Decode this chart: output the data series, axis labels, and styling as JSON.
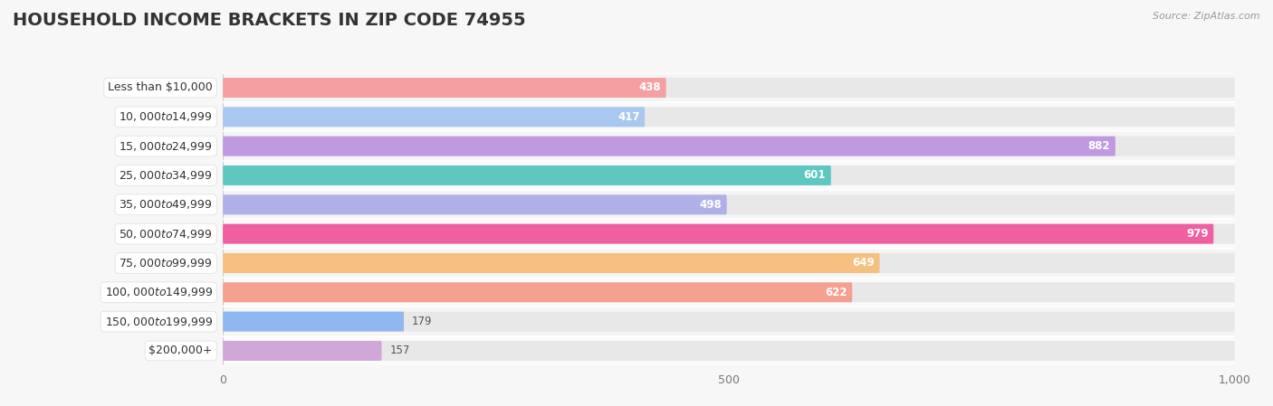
{
  "title": "HOUSEHOLD INCOME BRACKETS IN ZIP CODE 74955",
  "source": "Source: ZipAtlas.com",
  "categories": [
    "Less than $10,000",
    "$10,000 to $14,999",
    "$15,000 to $24,999",
    "$25,000 to $34,999",
    "$35,000 to $49,999",
    "$50,000 to $74,999",
    "$75,000 to $99,999",
    "$100,000 to $149,999",
    "$150,000 to $199,999",
    "$200,000+"
  ],
  "values": [
    438,
    417,
    882,
    601,
    498,
    979,
    649,
    622,
    179,
    157
  ],
  "colors": [
    "#F4A0A0",
    "#A8C8F0",
    "#C09AE0",
    "#5EC8C0",
    "#B0B0E8",
    "#F060A0",
    "#F5C080",
    "#F5A090",
    "#90B8F0",
    "#D0A8D8"
  ],
  "xlim": [
    0,
    1000
  ],
  "xticks": [
    0,
    500,
    1000
  ],
  "background_color": "#f7f7f7",
  "bar_bg_color": "#e8e8e8",
  "row_bg_even": "#f0f0f0",
  "row_bg_odd": "#fafafa",
  "title_fontsize": 14,
  "label_fontsize": 9,
  "value_fontsize": 8.5,
  "bar_height": 0.68,
  "value_inside_threshold": 250
}
